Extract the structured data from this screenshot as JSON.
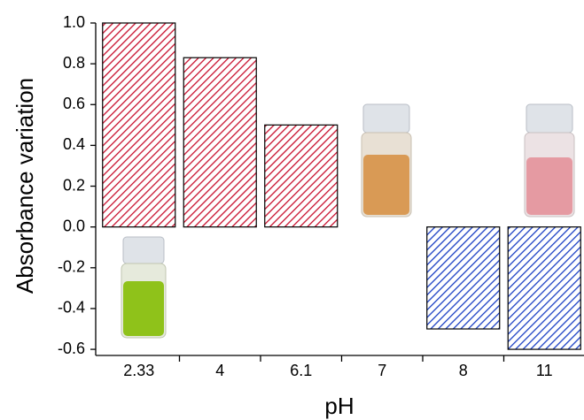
{
  "chart_data": {
    "type": "bar",
    "x_label": "pH",
    "y_label": "Absorbance variation",
    "categories": [
      "2.33",
      "4",
      "6.1",
      "7",
      "8",
      "11"
    ],
    "values": [
      1.0,
      0.83,
      0.5,
      0,
      -0.5,
      -0.6
    ],
    "colors": [
      "#c8102e",
      "#c8102e",
      "#c8102e",
      "#c8102e",
      "#1a3fc4",
      "#1a3fc4"
    ],
    "ylim": [
      -0.63,
      1.0
    ],
    "yticks": [
      {
        "value": -0.6,
        "label": "-0.6"
      },
      {
        "value": -0.4,
        "label": "-0.4"
      },
      {
        "value": -0.2,
        "label": "-0.2"
      },
      {
        "value": 0,
        "label": "0.0"
      },
      {
        "value": 0.2,
        "label": "0.2"
      },
      {
        "value": 0.4,
        "label": "0.4"
      },
      {
        "value": 0.6,
        "label": "0.6"
      },
      {
        "value": 0.8,
        "label": "0.8"
      },
      {
        "value": 1.0,
        "label": "1.0"
      }
    ]
  }
}
